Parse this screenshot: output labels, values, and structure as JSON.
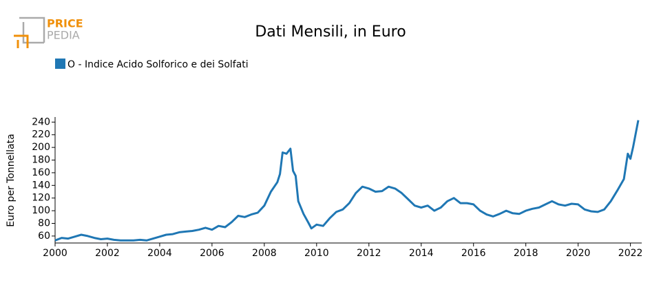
{
  "logo": {
    "top": "PRICE",
    "bottom": "PEDIA"
  },
  "chart_data": {
    "type": "line",
    "title": "Dati Mensili, in Euro",
    "y_label": "Euro per Tonnellata",
    "series": [
      {
        "name": "O - Indice Acido Solforico e dei Solfati",
        "color": "#1f77b4",
        "x": [
          2000.0,
          2000.25,
          2000.5,
          2000.75,
          2001.0,
          2001.25,
          2001.5,
          2001.75,
          2002.0,
          2002.25,
          2002.5,
          2002.75,
          2003.0,
          2003.25,
          2003.5,
          2003.75,
          2004.0,
          2004.25,
          2004.5,
          2004.75,
          2005.0,
          2005.25,
          2005.5,
          2005.75,
          2006.0,
          2006.25,
          2006.5,
          2006.75,
          2007.0,
          2007.25,
          2007.5,
          2007.75,
          2008.0,
          2008.25,
          2008.5,
          2008.6,
          2008.7,
          2008.85,
          2009.0,
          2009.1,
          2009.2,
          2009.3,
          2009.5,
          2009.7,
          2009.8,
          2010.0,
          2010.25,
          2010.5,
          2010.75,
          2011.0,
          2011.25,
          2011.5,
          2011.75,
          2012.0,
          2012.25,
          2012.5,
          2012.75,
          2013.0,
          2013.25,
          2013.5,
          2013.75,
          2014.0,
          2014.25,
          2014.5,
          2014.75,
          2015.0,
          2015.25,
          2015.5,
          2015.75,
          2016.0,
          2016.25,
          2016.5,
          2016.75,
          2017.0,
          2017.25,
          2017.5,
          2017.75,
          2018.0,
          2018.25,
          2018.5,
          2018.75,
          2019.0,
          2019.25,
          2019.5,
          2019.75,
          2020.0,
          2020.25,
          2020.5,
          2020.75,
          2021.0,
          2021.25,
          2021.5,
          2021.75,
          2021.9,
          2022.0,
          2022.1,
          2022.3
        ],
        "values": [
          53,
          57,
          56,
          59,
          62,
          60,
          57,
          55,
          56,
          54,
          53,
          53,
          53,
          54,
          53,
          56,
          59,
          62,
          63,
          66,
          67,
          68,
          70,
          73,
          70,
          76,
          74,
          82,
          92,
          90,
          94,
          97,
          108,
          130,
          145,
          158,
          192,
          190,
          198,
          163,
          155,
          115,
          95,
          80,
          72,
          78,
          76,
          88,
          98,
          102,
          112,
          128,
          138,
          135,
          130,
          131,
          138,
          135,
          128,
          118,
          108,
          105,
          108,
          100,
          105,
          115,
          120,
          112,
          112,
          110,
          100,
          94,
          91,
          95,
          100,
          96,
          95,
          100,
          103,
          105,
          110,
          115,
          110,
          108,
          111,
          110,
          102,
          99,
          98,
          102,
          115,
          132,
          150,
          190,
          182,
          200,
          243
        ]
      }
    ],
    "xlim": [
      2000,
      2022.3
    ],
    "xticks": [
      2000,
      2002,
      2004,
      2006,
      2008,
      2010,
      2012,
      2014,
      2016,
      2018,
      2020,
      2022
    ],
    "ylim": [
      49,
      248
    ],
    "yticks": [
      60,
      80,
      100,
      120,
      140,
      160,
      180,
      200,
      220,
      240
    ]
  }
}
